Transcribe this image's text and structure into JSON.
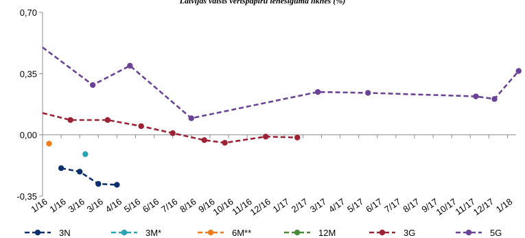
{
  "chart_data": {
    "type": "line",
    "title": "Latvijas valsts vērtspapīru ienesīguma līknes (%)",
    "xlabel": "",
    "ylabel": "",
    "ylim": [
      -0.35,
      0.7
    ],
    "yticks": [
      {
        "value": 0.7,
        "label": "0,70"
      },
      {
        "value": 0.35,
        "label": "0,35"
      },
      {
        "value": 0.0,
        "label": "0,00"
      },
      {
        "value": -0.35,
        "label": "-0,35"
      }
    ],
    "categories": [
      "1/16",
      "1/16",
      "3/16",
      "3/16",
      "4/16",
      "5/16",
      "6/16",
      "7/16",
      "8/16",
      "9/16",
      "10/16",
      "11/16",
      "12/16",
      "1/17",
      "2/17",
      "3/17",
      "4/17",
      "5/17",
      "6/17",
      "7/17",
      "8/17",
      "9/17",
      "10/17",
      "11/17",
      "12/17",
      "1/18"
    ],
    "grid": false,
    "legend_position": "bottom",
    "series": [
      {
        "name": "3N",
        "color": "#0d2f6e",
        "points": [
          {
            "x": 1.0,
            "y": -0.19
          },
          {
            "x": 2.0,
            "y": -0.21
          },
          {
            "x": 3.0,
            "y": -0.28
          },
          {
            "x": 4.0,
            "y": -0.285
          }
        ]
      },
      {
        "name": "3M*",
        "color": "#2aa3b3",
        "points": [
          {
            "x": 2.3,
            "y": -0.11
          }
        ]
      },
      {
        "name": "6M**",
        "color": "#ee7d1f",
        "points": [
          {
            "x": 0.35,
            "y": -0.05
          }
        ]
      },
      {
        "name": "12M",
        "color": "#4a8a3a",
        "points": []
      },
      {
        "name": "3G",
        "color": "#9b2335",
        "points": [
          {
            "x": 0.0,
            "y": 0.125
          },
          {
            "x": 1.5,
            "y": 0.085
          },
          {
            "x": 3.5,
            "y": 0.085
          },
          {
            "x": 5.3,
            "y": 0.05
          },
          {
            "x": 7.0,
            "y": 0.01
          },
          {
            "x": 8.7,
            "y": -0.03
          },
          {
            "x": 9.8,
            "y": -0.045
          },
          {
            "x": 12.0,
            "y": -0.01
          },
          {
            "x": 13.7,
            "y": -0.015
          }
        ]
      },
      {
        "name": "5G",
        "color": "#6a4397",
        "points": [
          {
            "x": 0.0,
            "y": 0.5
          },
          {
            "x": 2.7,
            "y": 0.285
          },
          {
            "x": 4.7,
            "y": 0.395
          },
          {
            "x": 8.0,
            "y": 0.095
          },
          {
            "x": 14.8,
            "y": 0.245
          },
          {
            "x": 17.5,
            "y": 0.24
          },
          {
            "x": 23.3,
            "y": 0.22
          },
          {
            "x": 24.3,
            "y": 0.205
          },
          {
            "x": 25.6,
            "y": 0.365
          }
        ]
      }
    ]
  }
}
